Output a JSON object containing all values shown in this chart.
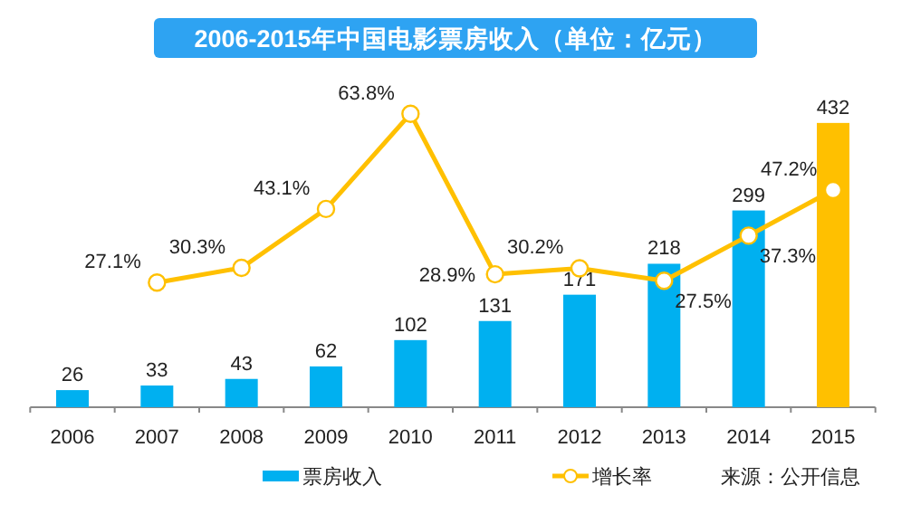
{
  "chart_data": {
    "type": "bar",
    "title": "2006-2015年中国电影票房收入（单位：亿元）",
    "categories": [
      "2006",
      "2007",
      "2008",
      "2009",
      "2010",
      "2011",
      "2012",
      "2013",
      "2014",
      "2015"
    ],
    "series": [
      {
        "name": "票房收入",
        "color": "#00b0f0",
        "colors": [
          "#00b0f0",
          "#00b0f0",
          "#00b0f0",
          "#00b0f0",
          "#00b0f0",
          "#00b0f0",
          "#00b0f0",
          "#00b0f0",
          "#00b0f0",
          "#ffc000"
        ],
        "values": [
          26,
          33,
          43,
          62,
          102,
          131,
          171,
          218,
          299,
          432
        ]
      },
      {
        "name": "增长率",
        "type": "line",
        "axis": "y2",
        "color": "#ffc000",
        "values": [
          null,
          27.1,
          30.3,
          43.1,
          63.8,
          28.9,
          30.2,
          27.5,
          37.3,
          47.2
        ],
        "value_labels": [
          null,
          "27.1%",
          "30.3%",
          "43.1%",
          "63.8%",
          "28.9%",
          "30.2%",
          "27.5%",
          "37.3%",
          "47.2%"
        ]
      }
    ],
    "data_labels": true,
    "tick_labels": "x",
    "legend": "bottom",
    "marker": "circle",
    "annotations": [
      "来源：公开信息"
    ]
  }
}
